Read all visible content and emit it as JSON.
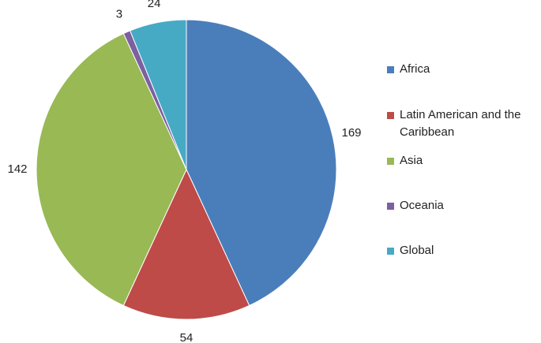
{
  "chart_data": {
    "type": "pie",
    "categories": [
      "Africa",
      "Latin American and the Caribbean",
      "Asia",
      "Oceania",
      "Global"
    ],
    "values": [
      169,
      54,
      142,
      3,
      24
    ],
    "colors": [
      "#4a7ebb",
      "#be4b48",
      "#98b954",
      "#7d60a0",
      "#46aac5"
    ],
    "legend": "right"
  }
}
